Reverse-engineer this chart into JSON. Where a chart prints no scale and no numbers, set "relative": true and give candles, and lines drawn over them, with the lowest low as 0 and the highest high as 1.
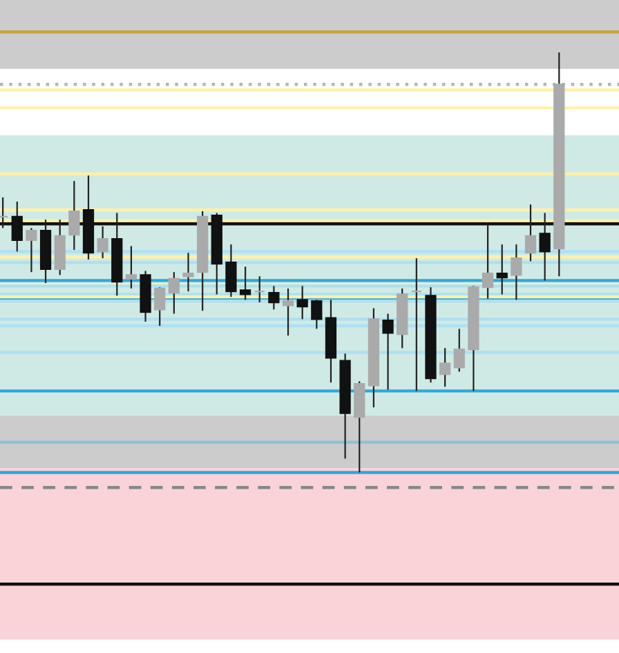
{
  "chart_data": {
    "type": "candlestick",
    "relative": true,
    "tick_labels": false,
    "categories": [
      null,
      null,
      null,
      null,
      null,
      null,
      null,
      null,
      null,
      null,
      null,
      null,
      null,
      null,
      null,
      null,
      null,
      null,
      null,
      null,
      null,
      null,
      null,
      null,
      null,
      null,
      null,
      null,
      null,
      null,
      null,
      null,
      null,
      null,
      null,
      null,
      null,
      null,
      null,
      null
    ],
    "ohlc": [
      [
        0.609,
        0.655,
        0.582,
        0.609
      ],
      [
        0.609,
        0.645,
        0.526,
        0.553
      ],
      [
        0.553,
        0.582,
        0.477,
        0.576
      ],
      [
        0.576,
        0.602,
        0.451,
        0.484
      ],
      [
        0.484,
        0.602,
        0.47,
        0.563
      ],
      [
        0.566,
        0.694,
        0.53,
        0.622
      ],
      [
        0.625,
        0.707,
        0.507,
        0.523
      ],
      [
        0.526,
        0.586,
        0.51,
        0.556
      ],
      [
        0.556,
        0.618,
        0.421,
        0.454
      ],
      [
        0.461,
        0.539,
        0.438,
        0.47
      ],
      [
        0.47,
        0.48,
        0.359,
        0.382
      ],
      [
        0.388,
        0.441,
        0.349,
        0.438
      ],
      [
        0.428,
        0.477,
        0.378,
        0.461
      ],
      [
        0.467,
        0.523,
        0.431,
        0.474
      ],
      [
        0.477,
        0.622,
        0.385,
        0.609
      ],
      [
        0.612,
        0.618,
        0.424,
        0.497
      ],
      [
        0.5,
        0.543,
        0.418,
        0.431
      ],
      [
        0.434,
        0.49,
        0.411,
        0.424
      ],
      [
        0.431,
        0.467,
        0.405,
        0.431
      ],
      [
        0.428,
        0.444,
        0.388,
        0.405
      ],
      [
        0.398,
        0.438,
        0.326,
        0.408
      ],
      [
        0.411,
        0.444,
        0.365,
        0.395
      ],
      [
        0.408,
        0.411,
        0.342,
        0.365
      ],
      [
        0.368,
        0.411,
        0.214,
        0.273
      ],
      [
        0.266,
        0.283,
        0.033,
        0.141
      ],
      [
        0.132,
        0.217,
        0.0,
        0.211
      ],
      [
        0.207,
        0.391,
        0.155,
        0.365
      ],
      [
        0.362,
        0.378,
        0.197,
        0.332
      ],
      [
        0.329,
        0.438,
        0.296,
        0.424
      ],
      [
        0.431,
        0.51,
        0.194,
        0.431
      ],
      [
        0.421,
        0.441,
        0.214,
        0.224
      ],
      [
        0.234,
        0.296,
        0.204,
        0.26
      ],
      [
        0.25,
        0.342,
        0.24,
        0.293
      ],
      [
        0.293,
        0.444,
        0.194,
        0.441
      ],
      [
        0.441,
        0.595,
        0.414,
        0.474
      ],
      [
        0.474,
        0.543,
        0.424,
        0.464
      ],
      [
        0.47,
        0.543,
        0.411,
        0.51
      ],
      [
        0.523,
        0.638,
        0.503,
        0.563
      ],
      [
        0.569,
        0.618,
        0.457,
        0.526
      ],
      [
        0.533,
        1.0,
        0.467,
        0.924
      ]
    ],
    "colors": [
      "#aaaaaa",
      "#111111",
      "#aaaaaa",
      "#111111",
      "#aaaaaa",
      "#aaaaaa",
      "#111111",
      "#aaaaaa",
      "#111111",
      "#aaaaaa",
      "#111111",
      "#aaaaaa",
      "#aaaaaa",
      "#aaaaaa",
      "#aaaaaa",
      "#111111",
      "#111111",
      "#111111",
      "#aaaaaa",
      "#111111",
      "#aaaaaa",
      "#111111",
      "#111111",
      "#111111",
      "#111111",
      "#aaaaaa",
      "#aaaaaa",
      "#111111",
      "#aaaaaa",
      "#aaaaaa",
      "#111111",
      "#aaaaaa",
      "#aaaaaa",
      "#aaaaaa",
      "#aaaaaa",
      "#111111",
      "#aaaaaa",
      "#aaaaaa",
      "#111111",
      "#aaaaaa"
    ],
    "bands": [
      {
        "axis": "y",
        "from": 0.961,
        "to": 1.125,
        "color": "#cccccc"
      },
      {
        "axis": "y",
        "from": -0.036,
        "to": 0.803,
        "color": "#cfeae5"
      },
      {
        "axis": "y",
        "from": 0.01,
        "to": 0.135,
        "color": "#cccccc"
      },
      {
        "axis": "y",
        "from": -0.211,
        "to": 0.01,
        "color": "#fad3d8"
      },
      {
        "axis": "y",
        "from": -0.398,
        "to": -0.036,
        "color": "#fad3d8"
      }
    ],
    "ref_lines": [
      {
        "axis": "y",
        "value": 1.049,
        "color": "#c8a43a"
      },
      {
        "axis": "y",
        "value": 0.924,
        "color": "#b5b5b5",
        "line_style": "dotted"
      },
      {
        "axis": "y",
        "value": 0.911,
        "color": "#fff1a6"
      },
      {
        "axis": "y",
        "value": 0.868,
        "color": "#fff1a6"
      },
      {
        "axis": "y",
        "value": 0.711,
        "color": "#fff1a6"
      },
      {
        "axis": "y",
        "value": 0.625,
        "color": "#fff1a6"
      },
      {
        "axis": "y",
        "value": 0.599,
        "color": "#fff1a6"
      },
      {
        "axis": "y",
        "value": 0.592,
        "color": "#111111"
      },
      {
        "axis": "y",
        "value": 0.526,
        "color": "#aee0f2"
      },
      {
        "axis": "y",
        "value": 0.513,
        "color": "#fff1a6"
      },
      {
        "axis": "y",
        "value": 0.5,
        "color": "#aee0f2"
      },
      {
        "axis": "y",
        "value": 0.457,
        "color": "#2ea8da"
      },
      {
        "axis": "y",
        "value": 0.447,
        "color": "#fff1a6"
      },
      {
        "axis": "y",
        "value": 0.444,
        "color": "#aee0f2"
      },
      {
        "axis": "y",
        "value": 0.424,
        "color": "#aee0f2"
      },
      {
        "axis": "y",
        "value": 0.418,
        "color": "#fff1a6"
      },
      {
        "axis": "y",
        "value": 0.411,
        "color": "#2ea8da"
      },
      {
        "axis": "y",
        "value": 0.408,
        "color": "#aee0f2"
      },
      {
        "axis": "y",
        "value": 0.365,
        "color": "#aee0f2"
      },
      {
        "axis": "y",
        "value": 0.349,
        "color": "#aee0f2"
      },
      {
        "axis": "y",
        "value": 0.286,
        "color": "#aee0f2"
      },
      {
        "axis": "y",
        "value": 0.194,
        "color": "#2ea8da"
      },
      {
        "axis": "y",
        "value": 0.072,
        "color": "#8fbfd6"
      },
      {
        "axis": "y",
        "value": 0.0,
        "color": "#2ea8da"
      },
      {
        "axis": "y",
        "value": -0.036,
        "color": "#888888",
        "line_style": "dashed"
      },
      {
        "axis": "y",
        "value": -0.266,
        "color": "#111111"
      }
    ]
  }
}
